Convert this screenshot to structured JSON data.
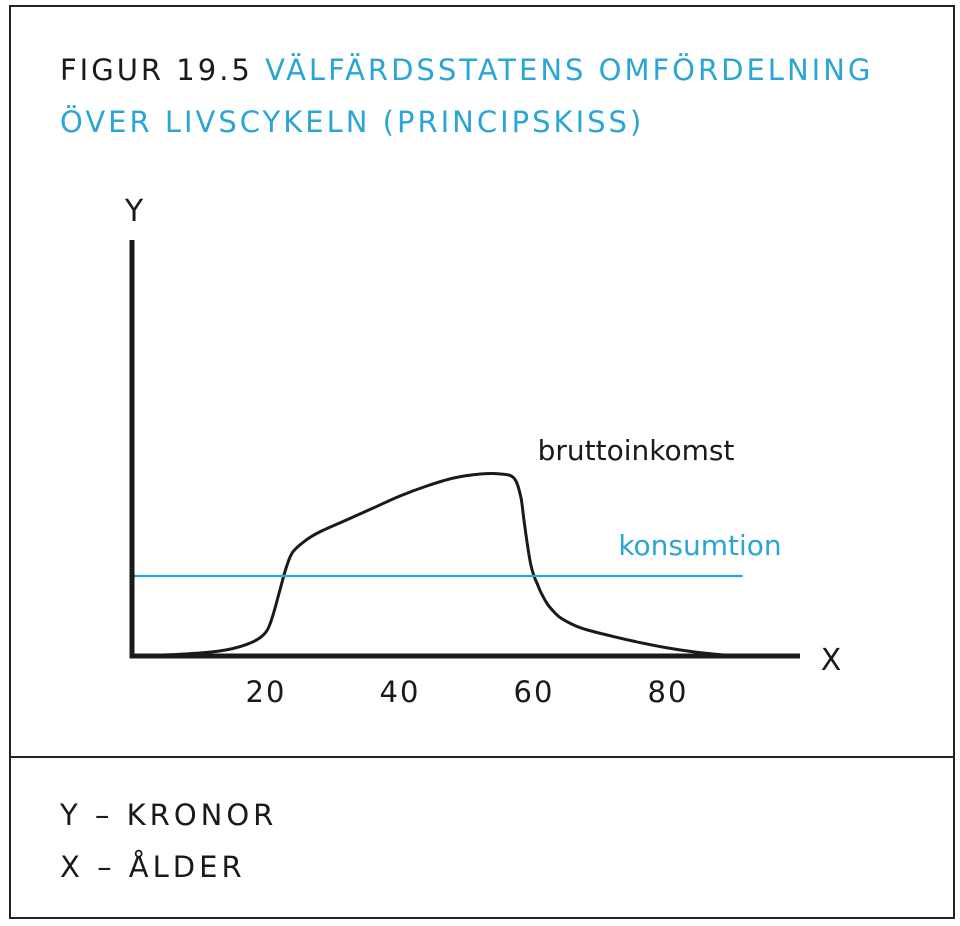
{
  "figure": {
    "label": "FIGUR 19.5",
    "title_line1": "VÄLFÄRDSSTATENS OMFÖRDELNING",
    "title_line2": "ÖVER LIVSCYKELN (PRINCIPSKISS)"
  },
  "legend": {
    "y_desc": "Y – KRONOR",
    "x_desc": "X – ÅLDER"
  },
  "colors": {
    "accent": "#2aa5d6",
    "ink": "#1a1a1a"
  },
  "chart_data": {
    "type": "line",
    "xlabel": "X",
    "ylabel": "Y",
    "xlim": [
      0,
      100
    ],
    "ylim": [
      0,
      100
    ],
    "x_ticks": [
      20,
      40,
      60,
      80
    ],
    "grid": false,
    "series": [
      {
        "name": "bruttoinkomst",
        "color": "#1a1a1a",
        "x": [
          0,
          8,
          14,
          18,
          20,
          21,
          22,
          23,
          24,
          26,
          28,
          32,
          36,
          40,
          44,
          48,
          52,
          55,
          57,
          58,
          58.5,
          59,
          59.5,
          60,
          60.5,
          61,
          62,
          63,
          64,
          66,
          68,
          72,
          76,
          80,
          84,
          88,
          90
        ],
        "y": [
          0,
          0.5,
          1.5,
          3.5,
          6,
          10,
          16,
          22,
          26,
          29,
          31,
          34,
          37,
          40,
          42.5,
          44.5,
          45.5,
          45.5,
          44.5,
          40,
          34,
          28,
          23,
          20,
          18,
          16,
          13,
          11,
          9.5,
          7.7,
          6.5,
          4.8,
          3.3,
          2,
          1,
          0.3,
          0
        ]
      },
      {
        "name": "konsumtion",
        "color": "#2aa5d6",
        "x": [
          0,
          91
        ],
        "y": [
          20,
          20
        ]
      }
    ],
    "annotations": [
      {
        "text": "bruttoinkomst",
        "series": "bruttoinkomst"
      },
      {
        "text": "konsumtion",
        "series": "konsumtion"
      }
    ]
  }
}
